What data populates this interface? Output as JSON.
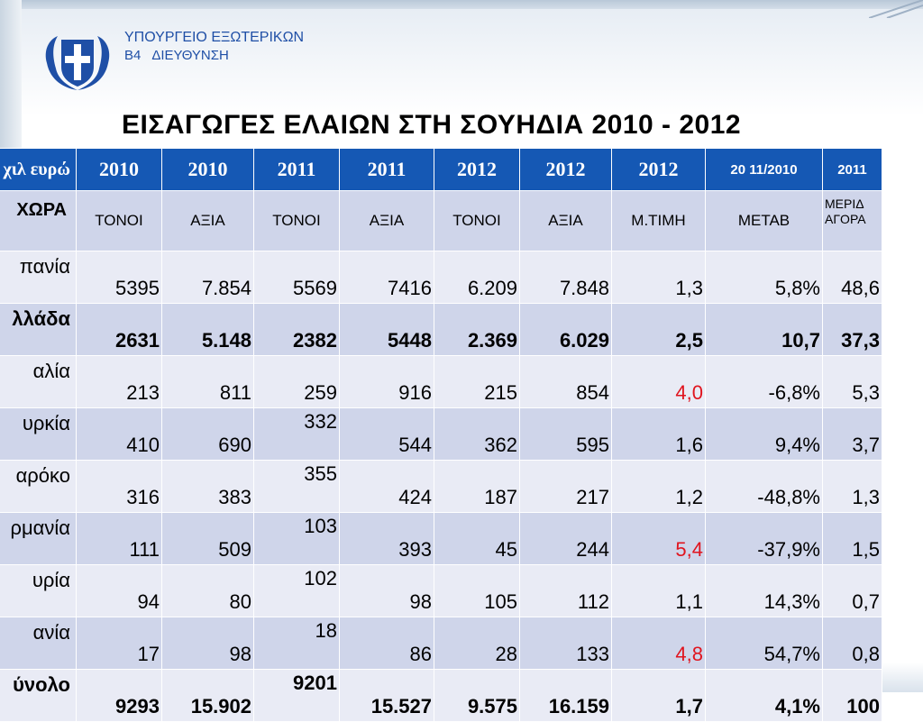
{
  "header": {
    "ministry_line1": "ΥΠΟΥΡΓΕΙΟ ΕΞΩΤΕΡΙΚΩΝ",
    "ministry_code": "Β4",
    "ministry_dept": "ΔΙΕΥΘΥΝΣΗ",
    "title": "ΕΙΣΑΓΩΓΕΣ  ΕΛΑΙΩΝ ΣΤΗ ΣΟΥΗΔΙΑ  2010 - 2012"
  },
  "colors": {
    "header_blue": "#1558b4",
    "ministry_blue": "#1f4fa6",
    "highlight_red": "#e0141e"
  },
  "table": {
    "year_row": [
      "ε χιλ ευρώ",
      "2010",
      "2010",
      "2011",
      "2011",
      "2012",
      "2012",
      "2012",
      "20 11/2010",
      "2011"
    ],
    "label_row": [
      "ΧΩΡΑ",
      "ΤΟΝΟΙ",
      "ΑΞΙΑ",
      "ΤΟΝΟΙ",
      "ΑΞΙΑ",
      "ΤΟΝΟΙ",
      "ΑΞΙΑ",
      "Μ.ΤΙΜΗ",
      "ΜΕΤΑΒ",
      "ΜΕΡΙΔ",
      "ΑΓΟΡΑ"
    ],
    "rows": [
      [
        "πανία",
        "5395",
        "7.854",
        "5569",
        "7416",
        "6.209",
        "7.848",
        "1,3",
        "5,8%",
        "48,6"
      ],
      [
        "λλάδα",
        "2631",
        "5.148",
        "2382",
        "5448",
        "2.369",
        "6.029",
        "2,5",
        "10,7",
        "37,3"
      ],
      [
        "αλία",
        "213",
        "811",
        "259",
        "916",
        "215",
        "854",
        "4,0",
        "-6,8%",
        "5,3"
      ],
      [
        "υρκία",
        "410",
        "690",
        "332",
        "544",
        "362",
        "595",
        "1,6",
        "9,4%",
        "3,7"
      ],
      [
        "αρόκο",
        "316",
        "383",
        "355",
        "424",
        "187",
        "217",
        "1,2",
        "-48,8%",
        "1,3"
      ],
      [
        "ρμανία",
        "111",
        "509",
        "103",
        "393",
        "45",
        "244",
        "5,4",
        "-37,9%",
        "1,5"
      ],
      [
        "υρία",
        "94",
        "80",
        "102",
        "98",
        "105",
        "112",
        "1,1",
        "14,3%",
        "0,7"
      ],
      [
        "ανία",
        "17",
        "98",
        "18",
        "86",
        "28",
        "133",
        "4,8",
        "54,7%",
        "0,8"
      ],
      [
        "ύνολο",
        "9293",
        "15.902",
        "9201",
        "15.527",
        "9.575",
        "16.159",
        "1,7",
        "4,1%",
        "100"
      ]
    ]
  }
}
